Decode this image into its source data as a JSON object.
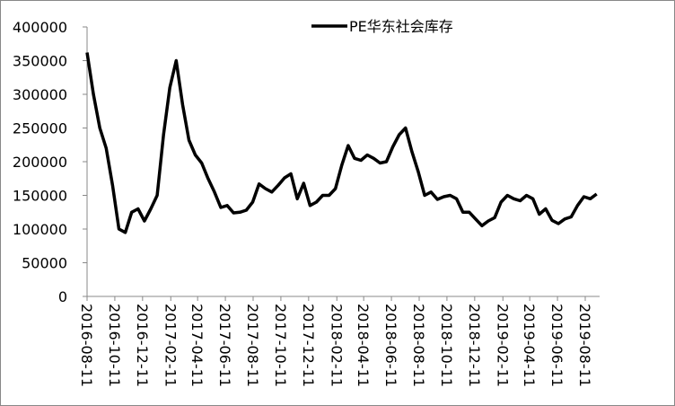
{
  "chart_data": {
    "type": "line",
    "x": [
      "2016-08-11",
      "2016-08-25",
      "2016-09-08",
      "2016-09-22",
      "2016-10-06",
      "2016-10-20",
      "2016-11-03",
      "2016-11-17",
      "2016-12-01",
      "2016-12-15",
      "2016-12-29",
      "2017-01-12",
      "2017-01-26",
      "2017-02-09",
      "2017-02-23",
      "2017-03-09",
      "2017-03-23",
      "2017-04-06",
      "2017-04-20",
      "2017-05-04",
      "2017-05-18",
      "2017-06-01",
      "2017-06-15",
      "2017-06-29",
      "2017-07-13",
      "2017-07-27",
      "2017-08-10",
      "2017-08-24",
      "2017-09-07",
      "2017-09-21",
      "2017-10-05",
      "2017-10-19",
      "2017-11-02",
      "2017-11-16",
      "2017-11-30",
      "2017-12-14",
      "2017-12-28",
      "2018-01-11",
      "2018-01-25",
      "2018-02-08",
      "2018-02-22",
      "2018-03-08",
      "2018-03-22",
      "2018-04-05",
      "2018-04-19",
      "2018-05-03",
      "2018-05-17",
      "2018-05-31",
      "2018-06-14",
      "2018-06-28",
      "2018-07-12",
      "2018-07-26",
      "2018-08-09",
      "2018-08-23",
      "2018-09-06",
      "2018-09-20",
      "2018-10-04",
      "2018-10-18",
      "2018-11-01",
      "2018-11-15",
      "2018-11-29",
      "2018-12-13",
      "2018-12-27",
      "2019-01-10",
      "2019-01-24",
      "2019-02-07",
      "2019-02-21",
      "2019-03-07",
      "2019-03-21",
      "2019-04-04",
      "2019-04-18",
      "2019-05-02",
      "2019-05-16",
      "2019-05-30",
      "2019-06-13",
      "2019-06-27",
      "2019-07-11",
      "2019-07-25",
      "2019-08-08",
      "2019-08-22",
      "2019-09-05"
    ],
    "series": [
      {
        "name": "PE华东社会库存",
        "color": "#000000",
        "values": [
          362000,
          300000,
          250000,
          220000,
          165000,
          100000,
          95000,
          125000,
          130000,
          112000,
          130000,
          150000,
          240000,
          310000,
          350000,
          285000,
          232000,
          210000,
          198000,
          175000,
          155000,
          132000,
          135000,
          124000,
          125000,
          128000,
          140000,
          167000,
          160000,
          155000,
          165000,
          176000,
          182000,
          145000,
          168000,
          135000,
          140000,
          150000,
          150000,
          160000,
          195000,
          224000,
          205000,
          202000,
          210000,
          205000,
          198000,
          200000,
          222000,
          240000,
          250000,
          215000,
          185000,
          150000,
          155000,
          144000,
          148000,
          150000,
          145000,
          125000,
          125000,
          115000,
          105000,
          112000,
          117000,
          140000,
          150000,
          145000,
          142000,
          150000,
          145000,
          122000,
          130000,
          113000,
          108000,
          115000,
          118000,
          135000,
          148000,
          145000,
          152000
        ]
      }
    ],
    "xticks": [
      "2016-08-11",
      "2016-10-11",
      "2016-12-11",
      "2017-02-11",
      "2017-04-11",
      "2017-06-11",
      "2017-08-11",
      "2017-10-11",
      "2017-12-11",
      "2018-02-11",
      "2018-04-11",
      "2018-06-11",
      "2018-08-11",
      "2018-10-11",
      "2018-12-11",
      "2019-02-11",
      "2019-04-11",
      "2019-06-11",
      "2019-08-11"
    ],
    "ylim": [
      0,
      400000
    ],
    "yticks": [
      0,
      50000,
      100000,
      150000,
      200000,
      250000,
      300000,
      350000,
      400000
    ],
    "legend": "top"
  }
}
